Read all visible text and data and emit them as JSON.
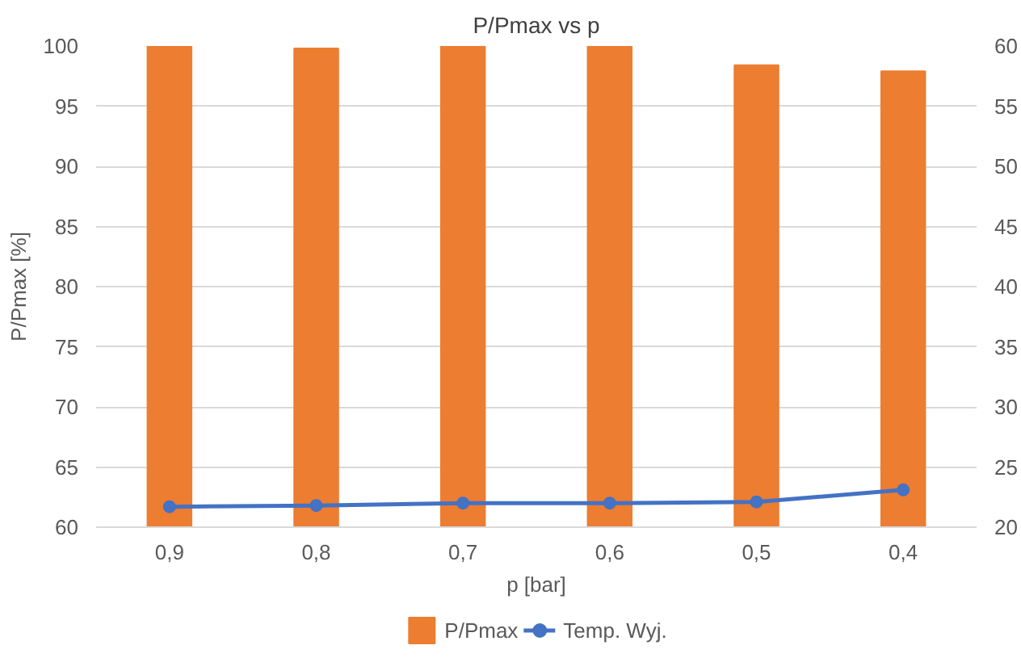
{
  "chart_data": {
    "type": "bar",
    "title": "P/Pmax vs p",
    "xlabel": "p [bar]",
    "ylabel": "P/Pmax [%]",
    "categories": [
      "0,9",
      "0,8",
      "0,7",
      "0,6",
      "0,5",
      "0,4"
    ],
    "series": [
      {
        "name": "P/Pmax",
        "color": "#ed7d31",
        "values": [
          100,
          99.8,
          100,
          100,
          98.4,
          97.9
        ]
      },
      {
        "name": "Temp. Wyj.",
        "type": "line",
        "axis": "y2",
        "color": "#4472c4",
        "marker": "circle",
        "values": [
          21.7,
          21.8,
          22.0,
          22.0,
          22.1,
          23.1
        ]
      }
    ],
    "ylim": [
      60,
      100
    ],
    "yticks": [
      60,
      65,
      70,
      75,
      80,
      85,
      90,
      95,
      100
    ],
    "y2lim": [
      20,
      60
    ],
    "y2ticks": [
      20,
      25,
      30,
      35,
      40,
      45,
      50,
      55,
      60
    ],
    "grid": "y",
    "legend": "bottom"
  }
}
